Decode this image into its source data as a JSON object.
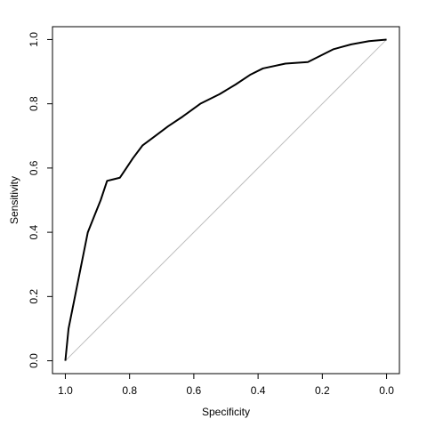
{
  "chart_data": {
    "type": "line",
    "xlabel": "Specificity",
    "ylabel": "Sensitivity",
    "xlim": [
      1.04,
      -0.04
    ],
    "ylim": [
      -0.04,
      1.04
    ],
    "xticks": [
      {
        "value": 1,
        "label": "1.0"
      },
      0.8,
      0.6,
      0.4,
      0.2,
      {
        "value": 0,
        "label": "0.0"
      }
    ],
    "yticks": [
      {
        "value": 0,
        "label": "0.0"
      },
      0.2,
      0.4,
      0.6,
      0.8,
      {
        "value": 1,
        "label": "1.0"
      }
    ],
    "x": [
      1.0,
      0.99,
      0.97,
      0.95,
      0.93,
      0.91,
      0.89,
      0.87,
      0.83,
      0.81,
      0.79,
      0.76,
      0.72,
      0.68,
      0.635,
      0.58,
      0.52,
      0.47,
      0.425,
      0.385,
      0.315,
      0.245,
      0.205,
      0.165,
      0.11,
      0.055,
      0.0
    ],
    "series": [
      {
        "name": "Sensitivity",
        "color": "#000000",
        "values": [
          0.0,
          0.1,
          0.2,
          0.3,
          0.4,
          0.45,
          0.5,
          0.56,
          0.57,
          0.6,
          0.63,
          0.67,
          0.7,
          0.73,
          0.76,
          0.8,
          0.83,
          0.86,
          0.89,
          0.91,
          0.925,
          0.93,
          0.95,
          0.97,
          0.985,
          0.995,
          1.0
        ]
      }
    ],
    "diagonal": {
      "x": [
        1,
        0
      ],
      "values": [
        0,
        1
      ],
      "color": "#bebebe"
    }
  }
}
